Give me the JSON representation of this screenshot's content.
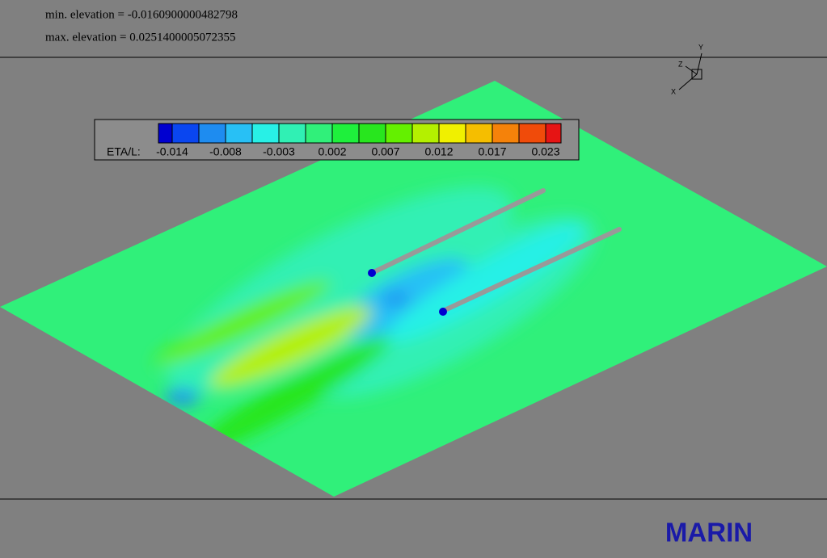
{
  "header": {
    "min_line": "min. elevation = -0.0160900000482798",
    "max_line": "max. elevation = 0.0251400005072355"
  },
  "colorbar": {
    "label": "ETA/L:",
    "colors": [
      "#0000d0",
      "#0a46f0",
      "#1e8cf0",
      "#28c0f5",
      "#28f0e6",
      "#30f0b4",
      "#30f07a",
      "#1ef03c",
      "#28e61e",
      "#64f000",
      "#b4f000",
      "#f0f000",
      "#f5be00",
      "#f5820a",
      "#f04b0a",
      "#e61414"
    ],
    "ticks": [
      "-0.014",
      "-0.008",
      "-0.003",
      "0.002",
      "0.007",
      "0.012",
      "0.017",
      "0.023"
    ]
  },
  "triad": {
    "x": "X",
    "y": "Y",
    "z": "Z"
  },
  "brand": "MARIN"
}
